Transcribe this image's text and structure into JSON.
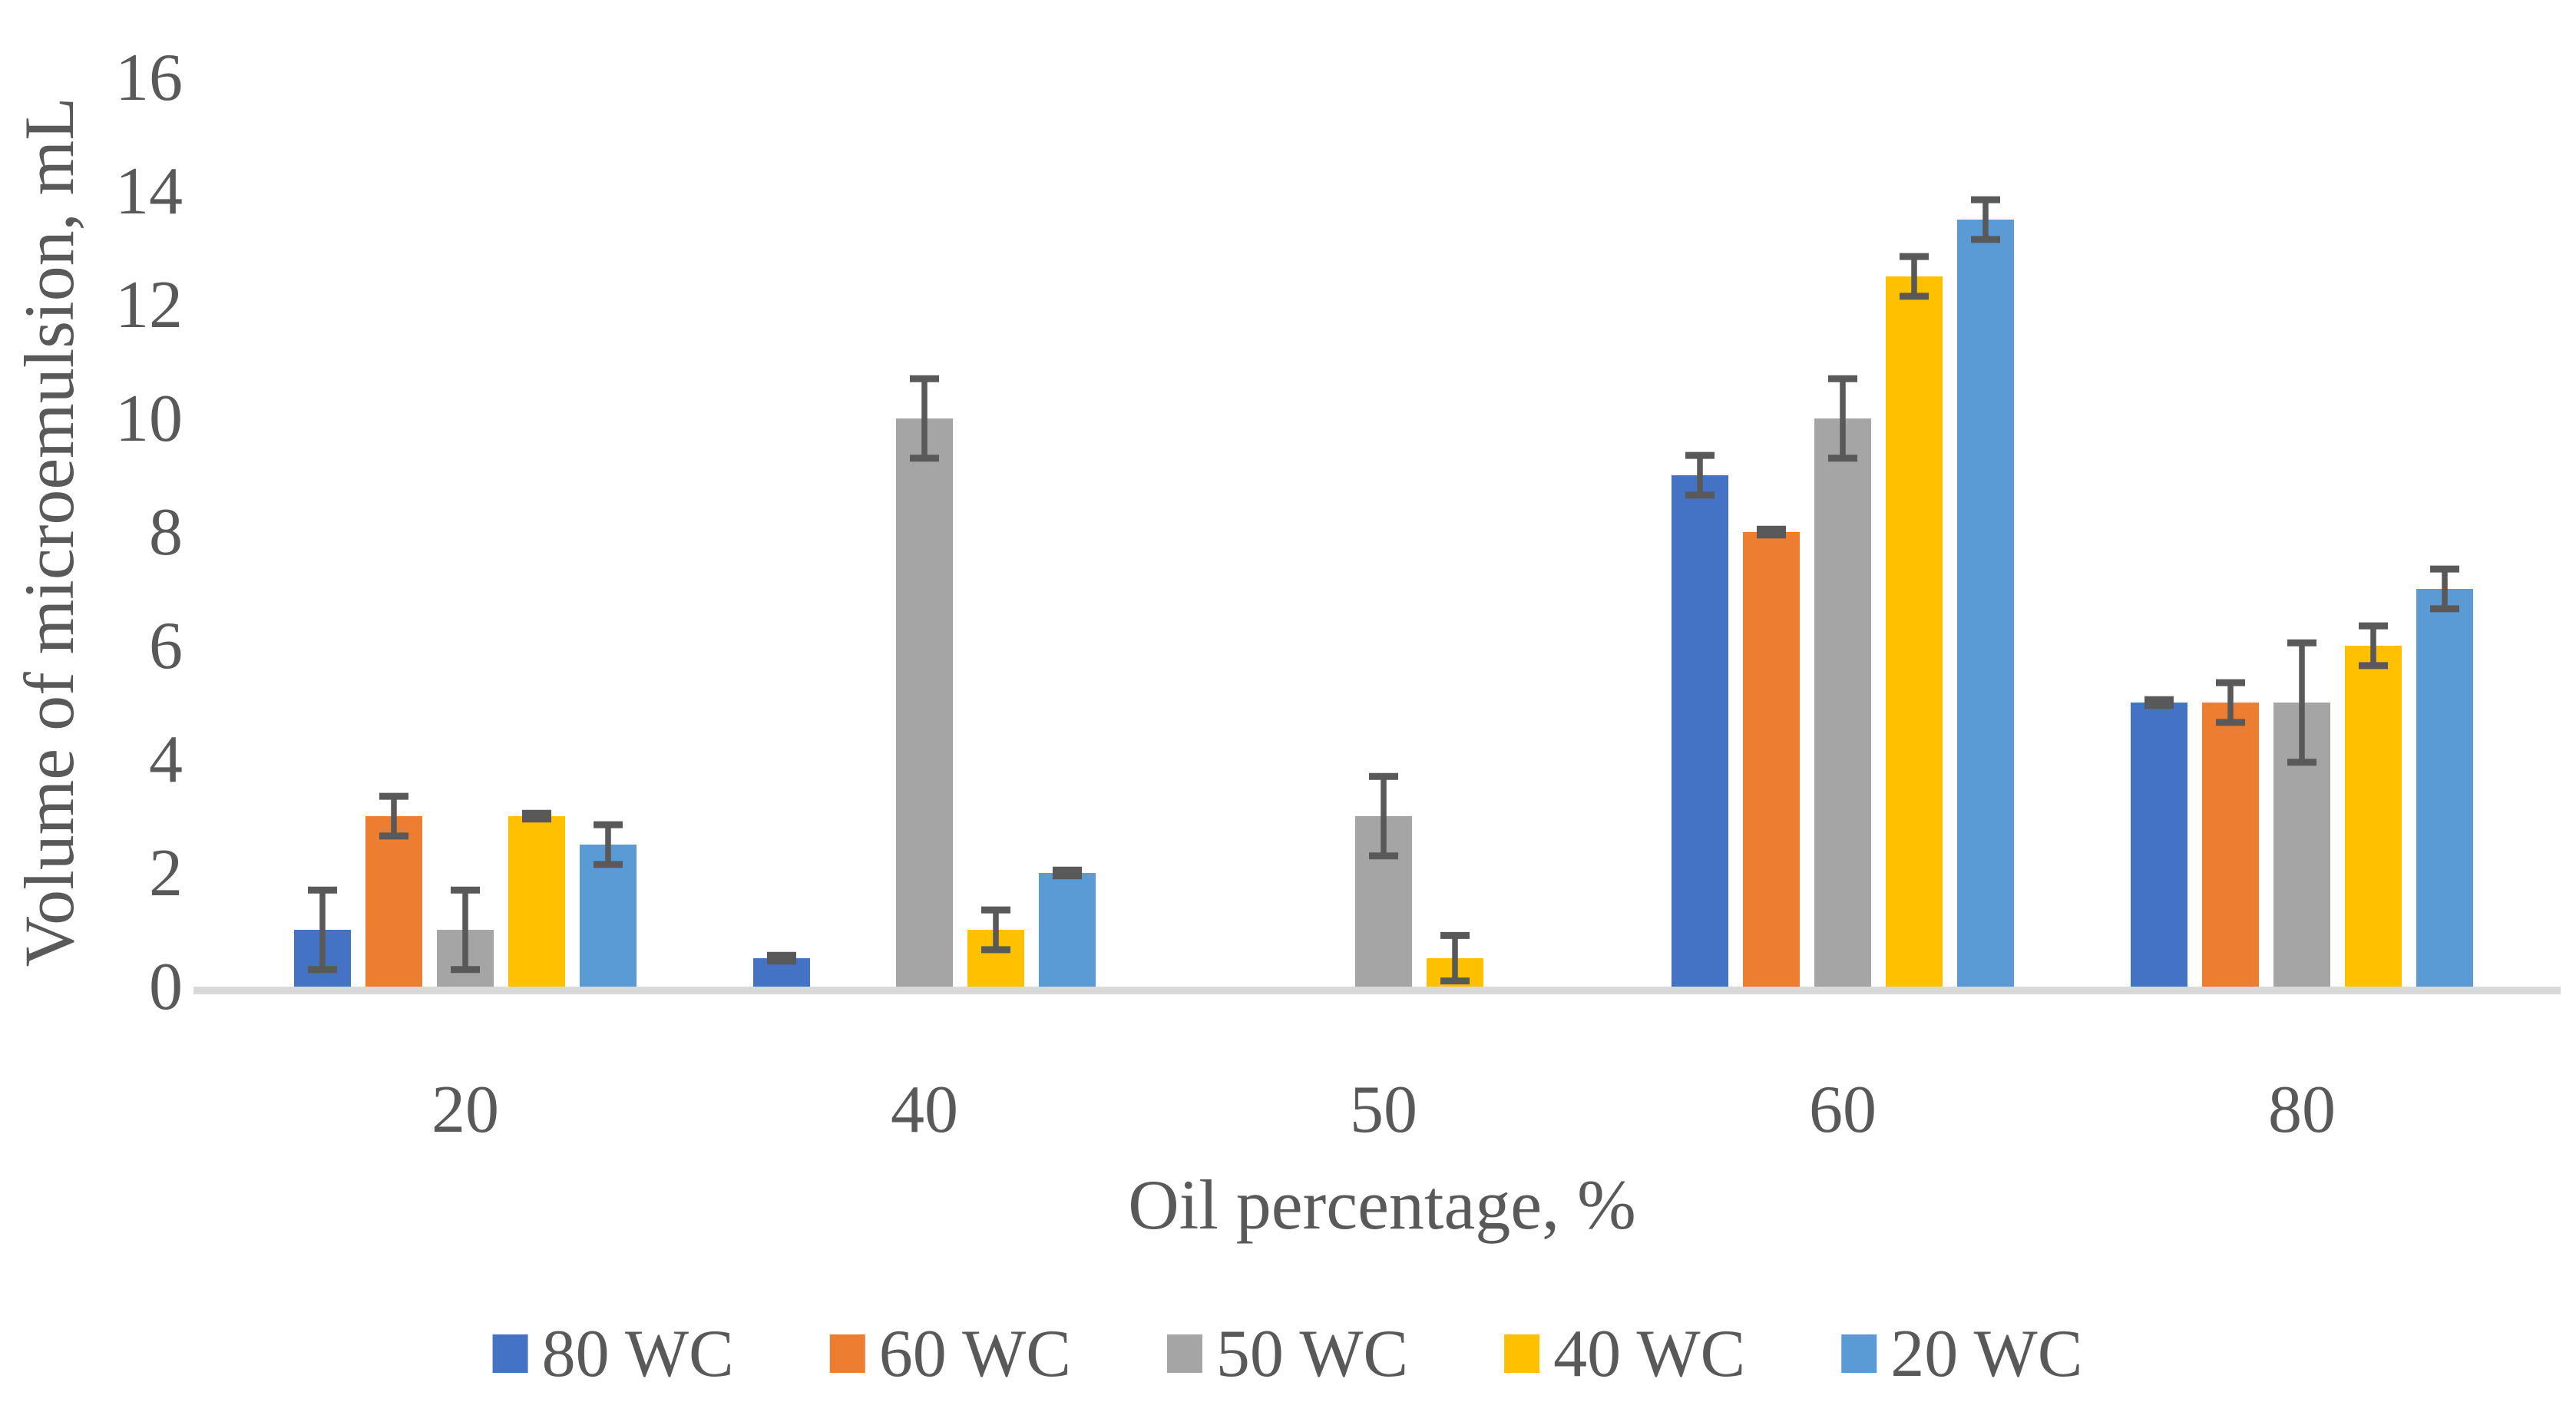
{
  "chart_data": {
    "type": "bar",
    "title": "",
    "xlabel": "Oil percentage, %",
    "ylabel": "Volume of microemulsion, mL",
    "categories": [
      "20",
      "40",
      "50",
      "60",
      "80"
    ],
    "series": [
      {
        "name": "80 WC",
        "color": "#4472C4",
        "values": [
          1,
          0.5,
          0,
          9,
          5
        ],
        "errors": [
          0.7,
          0.05,
          0,
          0.35,
          0.05
        ]
      },
      {
        "name": "60 WC",
        "color": "#ED7D31",
        "values": [
          3,
          0,
          0,
          8,
          5
        ],
        "errors": [
          0.35,
          0,
          0,
          0.05,
          0.35
        ]
      },
      {
        "name": "50 WC",
        "color": "#A5A5A5",
        "values": [
          1,
          10,
          3,
          10,
          5
        ],
        "errors": [
          0.7,
          0.7,
          0.7,
          0.7,
          1.05
        ]
      },
      {
        "name": "40 WC",
        "color": "#FFC000",
        "values": [
          3,
          1,
          0.5,
          12.5,
          6
        ],
        "errors": [
          0.05,
          0.35,
          0.4,
          0.35,
          0.35
        ]
      },
      {
        "name": "20 WC",
        "color": "#5B9BD5",
        "values": [
          2.5,
          2,
          0,
          13.5,
          7
        ],
        "errors": [
          0.35,
          0.05,
          0,
          0.35,
          0.35
        ]
      }
    ],
    "ylim": [
      0,
      16
    ],
    "y_ticks": [
      0,
      2,
      4,
      6,
      8,
      10,
      12,
      14,
      16
    ],
    "grid": false,
    "legend_position": "bottom",
    "legend_labels": [
      "80 WC",
      "60 WC",
      "50 WC",
      "40 WC",
      "20 WC"
    ],
    "error_bar_color": "#595959",
    "text_color": "#595959",
    "baseline_color": "#D9D9D9"
  }
}
